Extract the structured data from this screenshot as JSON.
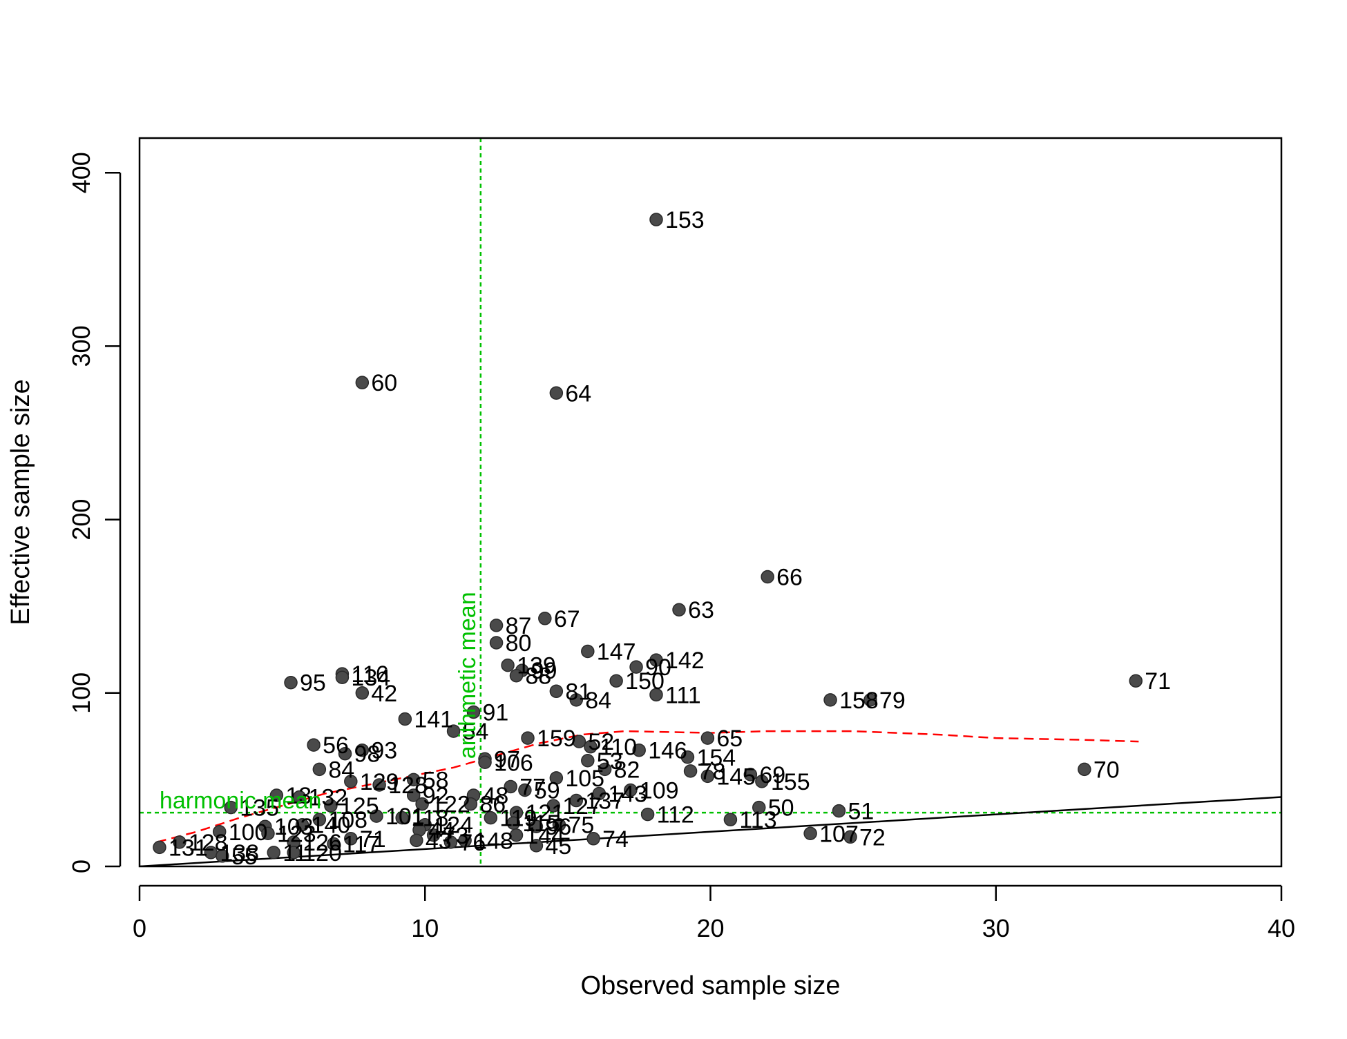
{
  "chart_data": {
    "type": "scatter",
    "title": "",
    "xlabel": "Observed sample size",
    "ylabel": "Effective sample size",
    "xlim": [
      0,
      40
    ],
    "ylim": [
      0,
      420
    ],
    "xticks": [
      0,
      10,
      20,
      30,
      40
    ],
    "yticks": [
      0,
      100,
      200,
      300,
      400
    ],
    "grid": false,
    "legend": "none",
    "colors": {
      "point_fill": "#4a4a4a",
      "point_stroke": "#2a2a2a",
      "identity_line": "#000000",
      "smooth_line": "#ff0000",
      "reference_lines": "#00c000"
    },
    "reference_lines": [
      {
        "orientation": "vertical",
        "value": 11.95,
        "label": "arithmetic mean"
      },
      {
        "orientation": "horizontal",
        "value": 31,
        "label": "harmonic mean"
      }
    ],
    "identity_line": {
      "slope": 1,
      "intercept": 0
    },
    "smooth_curve": [
      [
        0.6,
        14
      ],
      [
        2,
        20
      ],
      [
        3.5,
        28
      ],
      [
        5,
        35
      ],
      [
        6.5,
        42
      ],
      [
        8,
        47
      ],
      [
        9.5,
        52
      ],
      [
        11,
        57
      ],
      [
        12.5,
        64
      ],
      [
        14,
        71
      ],
      [
        15.5,
        76
      ],
      [
        17,
        78
      ],
      [
        20,
        77
      ],
      [
        22,
        78
      ],
      [
        25,
        78
      ],
      [
        28,
        76
      ],
      [
        30,
        74
      ],
      [
        33,
        73
      ],
      [
        35,
        72
      ]
    ],
    "points": [
      {
        "id": "153",
        "x": 18.1,
        "y": 373
      },
      {
        "id": "60",
        "x": 7.8,
        "y": 279
      },
      {
        "id": "64",
        "x": 14.6,
        "y": 273
      },
      {
        "id": "66",
        "x": 22.0,
        "y": 167
      },
      {
        "id": "63",
        "x": 18.9,
        "y": 148
      },
      {
        "id": "67",
        "x": 14.2,
        "y": 143
      },
      {
        "id": "87",
        "x": 12.5,
        "y": 139
      },
      {
        "id": "80",
        "x": 12.5,
        "y": 129
      },
      {
        "id": "147",
        "x": 15.7,
        "y": 124
      },
      {
        "id": "142",
        "x": 18.1,
        "y": 119
      },
      {
        "id": "90",
        "x": 17.4,
        "y": 115
      },
      {
        "id": "139",
        "x": 12.9,
        "y": 116
      },
      {
        "id": "99",
        "x": 13.4,
        "y": 113
      },
      {
        "id": "88",
        "x": 13.2,
        "y": 110
      },
      {
        "id": "116",
        "x": 7.1,
        "y": 111
      },
      {
        "id": "134",
        "x": 7.1,
        "y": 109
      },
      {
        "id": "95",
        "x": 5.3,
        "y": 106
      },
      {
        "id": "42",
        "x": 7.8,
        "y": 100
      },
      {
        "id": "150",
        "x": 16.7,
        "y": 107
      },
      {
        "id": "81",
        "x": 14.6,
        "y": 101
      },
      {
        "id": "111",
        "x": 18.1,
        "y": 99
      },
      {
        "id": "84",
        "x": 15.3,
        "y": 96
      },
      {
        "id": "71",
        "x": 34.9,
        "y": 107
      },
      {
        "id": "158",
        "x": 24.2,
        "y": 96
      },
      {
        "id": "79",
        "x": 25.6,
        "y": 96
      },
      {
        "id": "91",
        "x": 11.7,
        "y": 89
      },
      {
        "id": "141",
        "x": 9.3,
        "y": 85
      },
      {
        "id": "54",
        "x": 11.0,
        "y": 78
      },
      {
        "id": "65",
        "x": 19.9,
        "y": 74
      },
      {
        "id": "159",
        "x": 13.6,
        "y": 74
      },
      {
        "id": "52",
        "x": 15.4,
        "y": 72
      },
      {
        "id": "110",
        "x": 15.8,
        "y": 69
      },
      {
        "id": "146",
        "x": 17.5,
        "y": 67
      },
      {
        "id": "56",
        "x": 6.1,
        "y": 70
      },
      {
        "id": "93",
        "x": 7.8,
        "y": 67
      },
      {
        "id": "98",
        "x": 7.2,
        "y": 65
      },
      {
        "id": "154",
        "x": 19.2,
        "y": 63
      },
      {
        "id": "97",
        "x": 12.1,
        "y": 62
      },
      {
        "id": "106",
        "x": 12.1,
        "y": 60
      },
      {
        "id": "53",
        "x": 15.7,
        "y": 61
      },
      {
        "id": "84b",
        "x": 6.3,
        "y": 56
      },
      {
        "id": "82",
        "x": 16.3,
        "y": 56
      },
      {
        "id": "78",
        "x": 19.3,
        "y": 55
      },
      {
        "id": "69",
        "x": 21.4,
        "y": 53
      },
      {
        "id": "105",
        "x": 14.6,
        "y": 51
      },
      {
        "id": "145",
        "x": 19.9,
        "y": 52
      },
      {
        "id": "155",
        "x": 21.8,
        "y": 49
      },
      {
        "id": "70",
        "x": 33.1,
        "y": 56
      },
      {
        "id": "58",
        "x": 9.6,
        "y": 50
      },
      {
        "id": "129",
        "x": 7.4,
        "y": 49
      },
      {
        "id": "128",
        "x": 8.4,
        "y": 47
      },
      {
        "id": "77",
        "x": 13.0,
        "y": 46
      },
      {
        "id": "59",
        "x": 13.5,
        "y": 44
      },
      {
        "id": "109",
        "x": 17.2,
        "y": 44
      },
      {
        "id": "143",
        "x": 16.1,
        "y": 42
      },
      {
        "id": "48",
        "x": 11.7,
        "y": 41
      },
      {
        "id": "92",
        "x": 9.6,
        "y": 41
      },
      {
        "id": "13",
        "x": 4.8,
        "y": 41
      },
      {
        "id": "132",
        "x": 5.6,
        "y": 40
      },
      {
        "id": "86",
        "x": 11.6,
        "y": 36
      },
      {
        "id": "137",
        "x": 15.3,
        "y": 38
      },
      {
        "id": "122",
        "x": 9.9,
        "y": 36
      },
      {
        "id": "50",
        "x": 21.7,
        "y": 34
      },
      {
        "id": "51",
        "x": 24.5,
        "y": 32
      },
      {
        "id": "135",
        "x": 3.2,
        "y": 34
      },
      {
        "id": "125",
        "x": 6.7,
        "y": 35
      },
      {
        "id": "127",
        "x": 14.5,
        "y": 35
      },
      {
        "id": "121",
        "x": 13.2,
        "y": 31
      },
      {
        "id": "112",
        "x": 17.8,
        "y": 30
      },
      {
        "id": "119",
        "x": 12.3,
        "y": 28
      },
      {
        "id": "113",
        "x": 20.7,
        "y": 27
      },
      {
        "id": "118",
        "x": 9.2,
        "y": 28
      },
      {
        "id": "101",
        "x": 8.3,
        "y": 29
      },
      {
        "id": "115",
        "x": 13.1,
        "y": 25
      },
      {
        "id": "75",
        "x": 14.7,
        "y": 24
      },
      {
        "id": "96",
        "x": 13.9,
        "y": 23
      },
      {
        "id": "108",
        "x": 6.3,
        "y": 27
      },
      {
        "id": "124",
        "x": 10.0,
        "y": 24
      },
      {
        "id": "140",
        "x": 5.7,
        "y": 24
      },
      {
        "id": "103",
        "x": 4.4,
        "y": 23
      },
      {
        "id": "100",
        "x": 2.8,
        "y": 20
      },
      {
        "id": "44",
        "x": 9.8,
        "y": 21
      },
      {
        "id": "123",
        "x": 4.5,
        "y": 19
      },
      {
        "id": "107",
        "x": 23.5,
        "y": 19
      },
      {
        "id": "144",
        "x": 13.2,
        "y": 18
      },
      {
        "id": "73",
        "x": 10.3,
        "y": 18
      },
      {
        "id": "72",
        "x": 24.9,
        "y": 17
      },
      {
        "id": "74",
        "x": 15.9,
        "y": 16
      },
      {
        "id": "71b",
        "x": 7.4,
        "y": 16
      },
      {
        "id": "43",
        "x": 9.7,
        "y": 15
      },
      {
        "id": "126",
        "x": 5.4,
        "y": 14
      },
      {
        "id": "117",
        "x": 6.8,
        "y": 13
      },
      {
        "id": "45",
        "x": 13.9,
        "y": 12
      },
      {
        "id": "128b",
        "x": 1.4,
        "y": 14
      },
      {
        "id": "131",
        "x": 0.7,
        "y": 11
      },
      {
        "id": "138",
        "x": 2.5,
        "y": 8
      },
      {
        "id": "120",
        "x": 5.4,
        "y": 8
      },
      {
        "id": "55",
        "x": 2.9,
        "y": 6
      },
      {
        "id": "11",
        "x": 4.7,
        "y": 8
      },
      {
        "id": "76",
        "x": 10.9,
        "y": 14
      },
      {
        "id": "148",
        "x": 11.4,
        "y": 15
      }
    ],
    "labels": [
      {
        "text": "153",
        "x": 18.1,
        "y": 373
      },
      {
        "text": "60",
        "x": 7.8,
        "y": 279
      },
      {
        "text": "64",
        "x": 14.6,
        "y": 273
      },
      {
        "text": "66",
        "x": 22.0,
        "y": 167
      },
      {
        "text": "63",
        "x": 18.9,
        "y": 148
      },
      {
        "text": "67",
        "x": 14.2,
        "y": 143
      },
      {
        "text": "87",
        "x": 12.5,
        "y": 139
      },
      {
        "text": "80",
        "x": 12.5,
        "y": 129
      },
      {
        "text": "147",
        "x": 15.7,
        "y": 124
      },
      {
        "text": "142",
        "x": 18.1,
        "y": 119
      },
      {
        "text": "90",
        "x": 17.4,
        "y": 115
      },
      {
        "text": "139",
        "x": 12.9,
        "y": 116
      },
      {
        "text": "99",
        "x": 13.4,
        "y": 113
      },
      {
        "text": "88",
        "x": 13.2,
        "y": 110
      },
      {
        "text": "116",
        "x": 7.1,
        "y": 111
      },
      {
        "text": "134",
        "x": 7.1,
        "y": 109
      },
      {
        "text": "95",
        "x": 5.3,
        "y": 106
      },
      {
        "text": "42",
        "x": 7.8,
        "y": 100
      },
      {
        "text": "150",
        "x": 16.7,
        "y": 107
      },
      {
        "text": "81",
        "x": 14.6,
        "y": 101
      },
      {
        "text": "111",
        "x": 18.1,
        "y": 99
      },
      {
        "text": "84",
        "x": 15.3,
        "y": 96
      },
      {
        "text": "71",
        "x": 34.9,
        "y": 107
      },
      {
        "text": "158",
        "x": 24.2,
        "y": 96
      },
      {
        "text": "79",
        "x": 25.6,
        "y": 96
      },
      {
        "text": "91",
        "x": 11.7,
        "y": 89
      },
      {
        "text": "141",
        "x": 9.3,
        "y": 85
      },
      {
        "text": "54",
        "x": 11.0,
        "y": 78
      },
      {
        "text": "65",
        "x": 19.9,
        "y": 74
      },
      {
        "text": "159",
        "x": 13.6,
        "y": 74
      },
      {
        "text": "52",
        "x": 15.4,
        "y": 72
      },
      {
        "text": "110",
        "x": 15.8,
        "y": 69
      },
      {
        "text": "146",
        "x": 17.5,
        "y": 67
      },
      {
        "text": "56",
        "x": 6.1,
        "y": 70
      },
      {
        "text": "93",
        "x": 7.8,
        "y": 67
      },
      {
        "text": "98",
        "x": 7.2,
        "y": 65
      },
      {
        "text": "154",
        "x": 19.2,
        "y": 63
      },
      {
        "text": "97",
        "x": 12.1,
        "y": 62
      },
      {
        "text": "106",
        "x": 12.1,
        "y": 60
      },
      {
        "text": "53",
        "x": 15.7,
        "y": 61
      },
      {
        "text": "84",
        "x": 6.3,
        "y": 56
      },
      {
        "text": "82",
        "x": 16.3,
        "y": 56
      },
      {
        "text": "78",
        "x": 19.3,
        "y": 55
      },
      {
        "text": "69",
        "x": 21.4,
        "y": 53
      },
      {
        "text": "105",
        "x": 14.6,
        "y": 51
      },
      {
        "text": "145",
        "x": 19.9,
        "y": 52
      },
      {
        "text": "155",
        "x": 21.8,
        "y": 49
      },
      {
        "text": "70",
        "x": 33.1,
        "y": 56
      },
      {
        "text": "58",
        "x": 9.6,
        "y": 50
      },
      {
        "text": "129",
        "x": 7.4,
        "y": 49
      },
      {
        "text": "128",
        "x": 8.4,
        "y": 47
      },
      {
        "text": "77",
        "x": 13.0,
        "y": 46
      },
      {
        "text": "59",
        "x": 13.5,
        "y": 44
      },
      {
        "text": "109",
        "x": 17.2,
        "y": 44
      },
      {
        "text": "143",
        "x": 16.1,
        "y": 42
      },
      {
        "text": "48",
        "x": 11.7,
        "y": 41
      },
      {
        "text": "92",
        "x": 9.6,
        "y": 41
      },
      {
        "text": "13",
        "x": 4.8,
        "y": 41
      },
      {
        "text": "132",
        "x": 5.6,
        "y": 40
      },
      {
        "text": "86",
        "x": 11.6,
        "y": 36
      },
      {
        "text": "137",
        "x": 15.3,
        "y": 38
      },
      {
        "text": "122",
        "x": 9.9,
        "y": 36
      },
      {
        "text": "50",
        "x": 21.7,
        "y": 34
      },
      {
        "text": "51",
        "x": 24.5,
        "y": 32
      },
      {
        "text": "135",
        "x": 3.2,
        "y": 34
      },
      {
        "text": "125",
        "x": 6.7,
        "y": 35
      },
      {
        "text": "127",
        "x": 14.5,
        "y": 35
      },
      {
        "text": "121",
        "x": 13.2,
        "y": 31
      },
      {
        "text": "112",
        "x": 17.8,
        "y": 30
      },
      {
        "text": "119",
        "x": 12.3,
        "y": 28
      },
      {
        "text": "113",
        "x": 20.7,
        "y": 27
      },
      {
        "text": "118",
        "x": 9.2,
        "y": 28
      },
      {
        "text": "101",
        "x": 8.3,
        "y": 29
      },
      {
        "text": "115",
        "x": 13.1,
        "y": 25
      },
      {
        "text": "75",
        "x": 14.7,
        "y": 24
      },
      {
        "text": "96",
        "x": 13.9,
        "y": 23
      },
      {
        "text": "108",
        "x": 6.3,
        "y": 27
      },
      {
        "text": "124",
        "x": 10.0,
        "y": 24
      },
      {
        "text": "140",
        "x": 5.7,
        "y": 24
      },
      {
        "text": "103",
        "x": 4.4,
        "y": 23
      },
      {
        "text": "100",
        "x": 2.8,
        "y": 20
      },
      {
        "text": "44",
        "x": 9.8,
        "y": 21
      },
      {
        "text": "123",
        "x": 4.5,
        "y": 19
      },
      {
        "text": "107",
        "x": 23.5,
        "y": 19
      },
      {
        "text": "144",
        "x": 13.2,
        "y": 18
      },
      {
        "text": "73",
        "x": 10.3,
        "y": 18
      },
      {
        "text": "72",
        "x": 24.9,
        "y": 17
      },
      {
        "text": "74",
        "x": 15.9,
        "y": 16
      },
      {
        "text": "71",
        "x": 7.4,
        "y": 16
      },
      {
        "text": "43",
        "x": 9.7,
        "y": 15
      },
      {
        "text": "126",
        "x": 5.4,
        "y": 14
      },
      {
        "text": "117",
        "x": 6.8,
        "y": 13
      },
      {
        "text": "45",
        "x": 13.9,
        "y": 12
      },
      {
        "text": "128",
        "x": 1.4,
        "y": 14
      },
      {
        "text": "131",
        "x": 0.7,
        "y": 11
      },
      {
        "text": "138",
        "x": 2.5,
        "y": 8
      },
      {
        "text": "120",
        "x": 5.4,
        "y": 8
      },
      {
        "text": "55",
        "x": 2.9,
        "y": 6
      },
      {
        "text": "11",
        "x": 4.7,
        "y": 8
      },
      {
        "text": "76",
        "x": 10.9,
        "y": 14
      },
      {
        "text": "148",
        "x": 11.4,
        "y": 15
      }
    ]
  }
}
